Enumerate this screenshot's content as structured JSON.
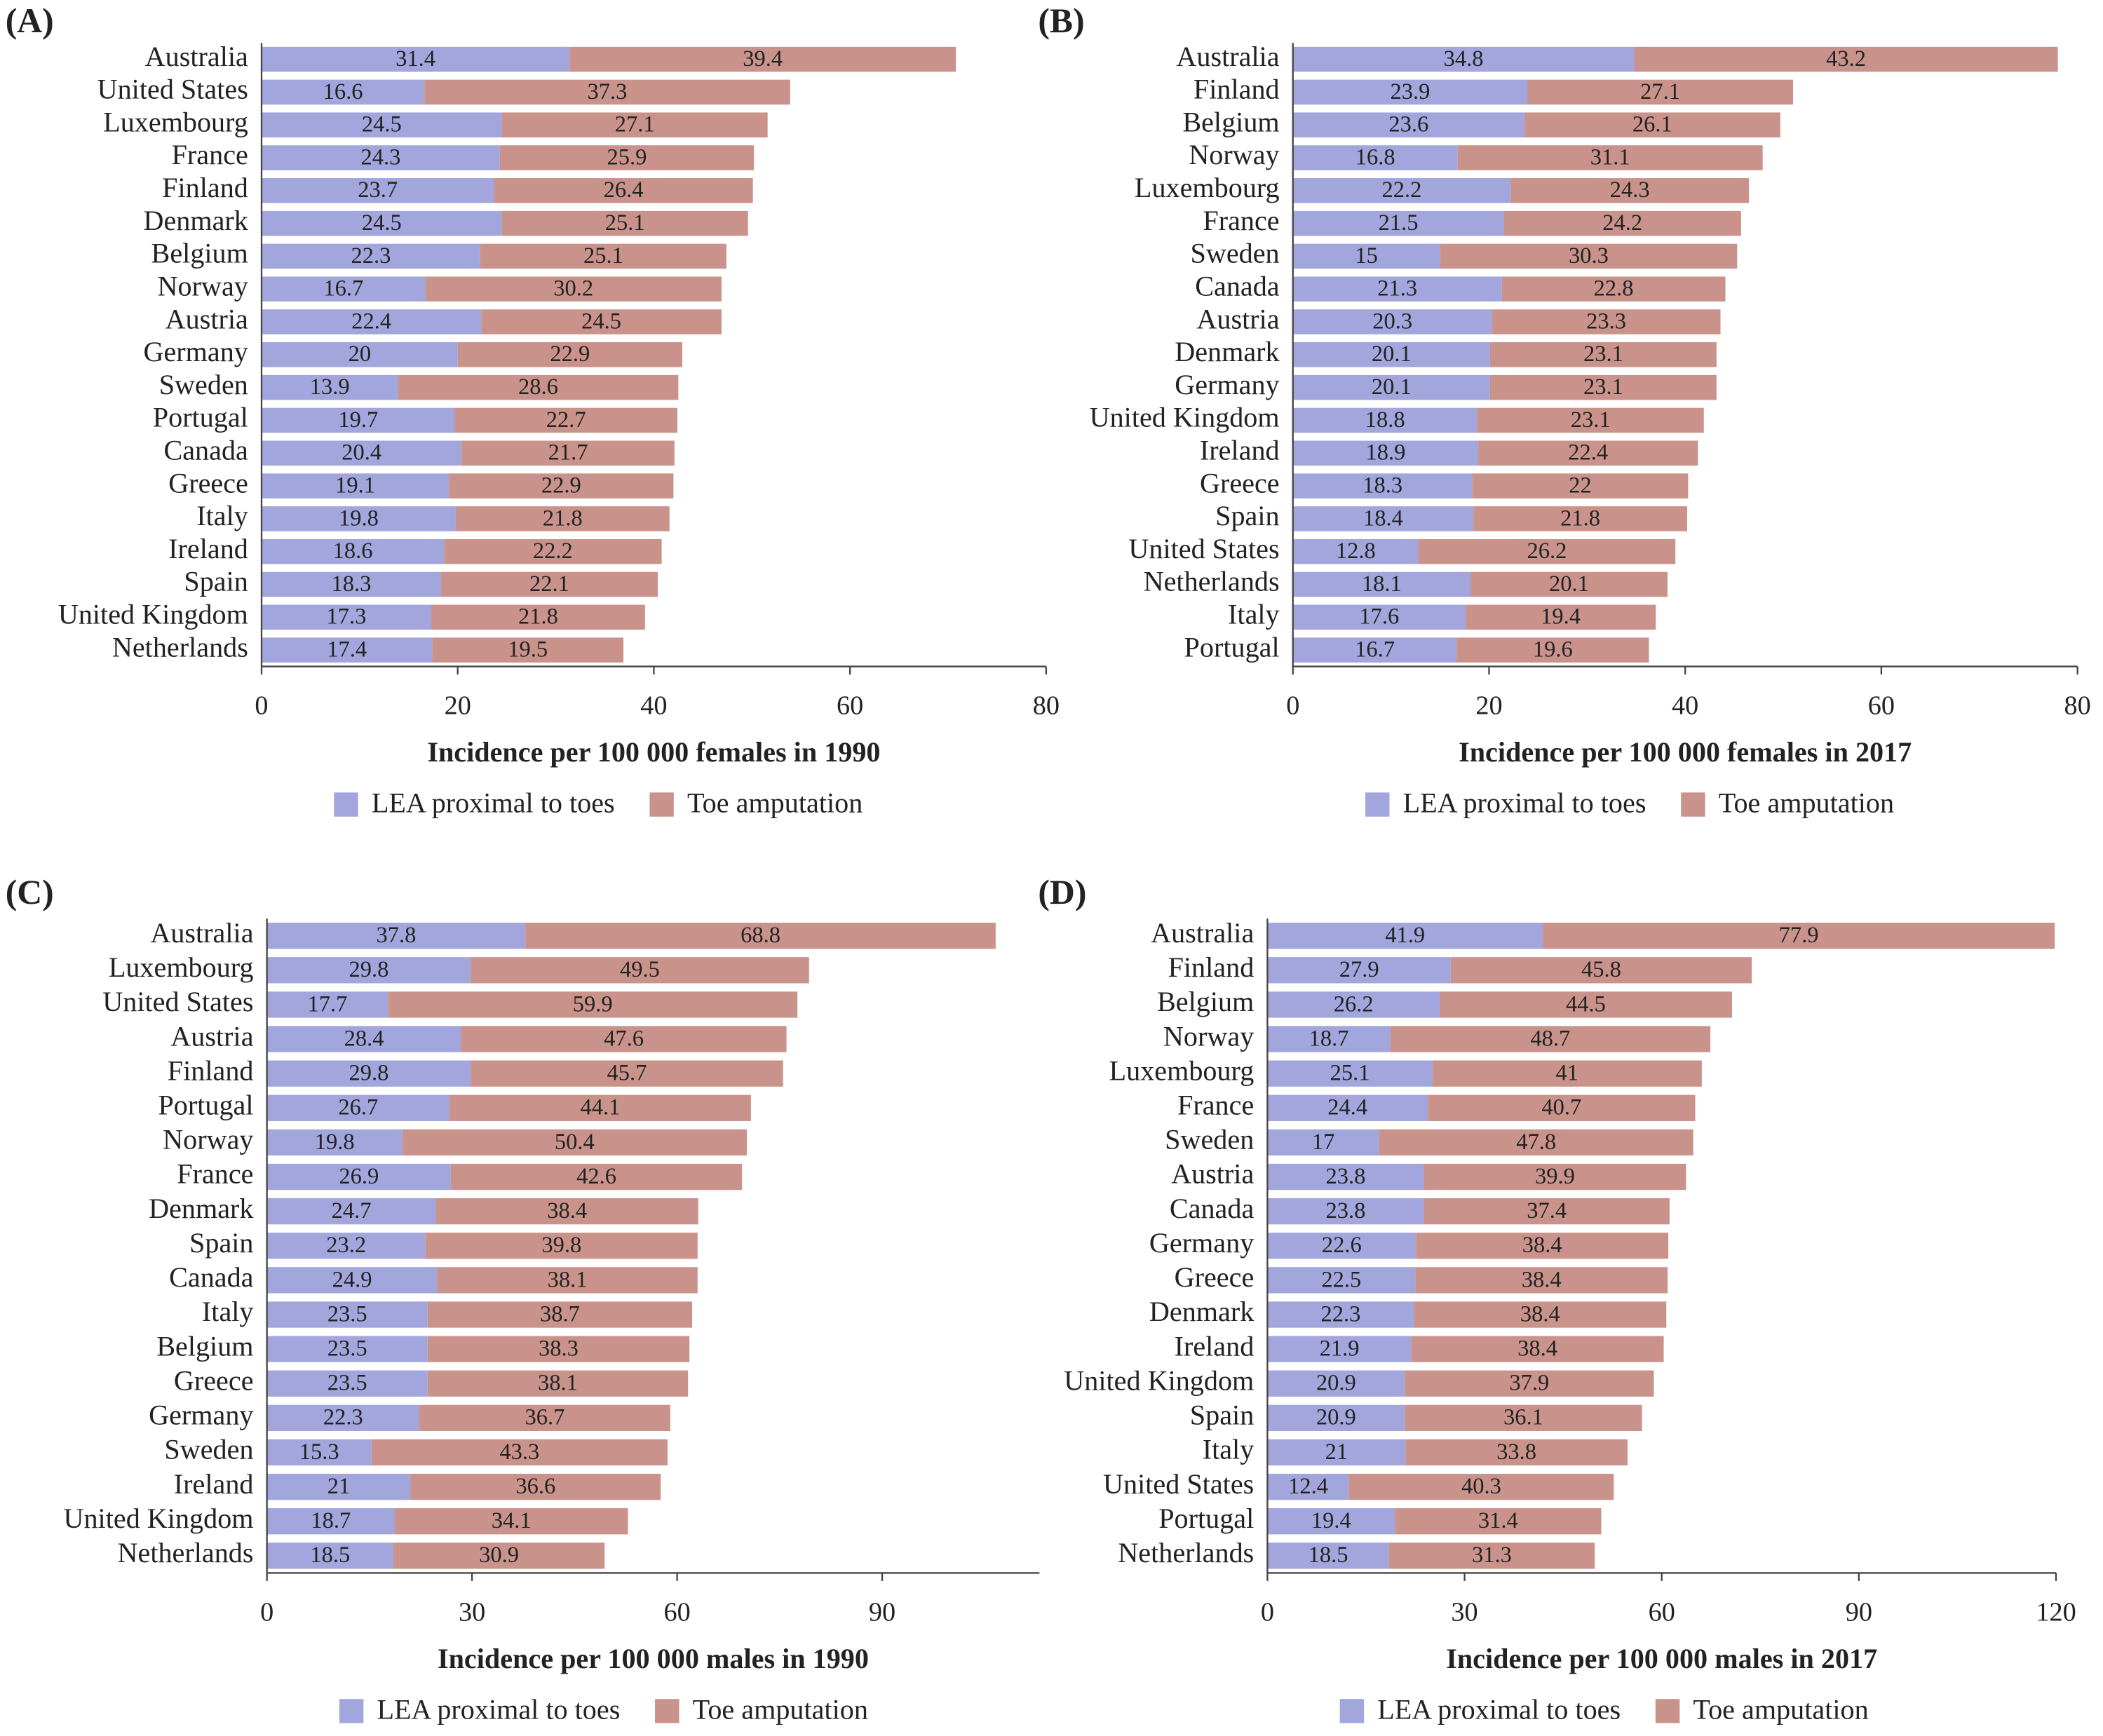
{
  "chart_data": [
    {
      "type": "stacked_bar",
      "label": "(A)",
      "x_label": "Incidence per 100 000 females in 1990",
      "categories": [
        "Australia",
        "United States",
        "Luxembourg",
        "France",
        "Finland",
        "Denmark",
        "Belgium",
        "Norway",
        "Austria",
        "Germany",
        "Sweden",
        "Portugal",
        "Canada",
        "Greece",
        "Italy",
        "Ireland",
        "Spain",
        "United Kingdom",
        "Netherlands"
      ],
      "series": [
        {
          "name": "LEA proximal to toes",
          "color": "#a2a6dc",
          "values": [
            31.4,
            16.6,
            24.5,
            24.3,
            23.7,
            24.5,
            22.3,
            16.7,
            22.4,
            20,
            13.9,
            19.7,
            20.4,
            19.1,
            19.8,
            18.6,
            18.3,
            17.3,
            17.4
          ]
        },
        {
          "name": "Toe amputation",
          "color": "#c9938b",
          "values": [
            39.4,
            37.3,
            27.1,
            25.9,
            26.4,
            25.1,
            25.1,
            30.2,
            24.5,
            22.9,
            28.6,
            22.7,
            21.7,
            22.9,
            21.8,
            22.2,
            22.1,
            21.8,
            19.5
          ]
        }
      ],
      "xlim": [
        0,
        80
      ],
      "xticks": [
        0,
        20,
        40,
        60,
        80
      ]
    },
    {
      "type": "stacked_bar",
      "label": "(B)",
      "x_label": "Incidence per 100 000 females in 2017",
      "categories": [
        "Australia",
        "Finland",
        "Belgium",
        "Norway",
        "Luxembourg",
        "France",
        "Sweden",
        "Canada",
        "Austria",
        "Denmark",
        "Germany",
        "United Kingdom",
        "Ireland",
        "Greece",
        "Spain",
        "United States",
        "Netherlands",
        "Italy",
        "Portugal"
      ],
      "series": [
        {
          "name": "LEA proximal to toes",
          "color": "#a2a6dc",
          "values": [
            34.8,
            23.9,
            23.6,
            16.8,
            22.2,
            21.5,
            15,
            21.3,
            20.3,
            20.1,
            20.1,
            18.8,
            18.9,
            18.3,
            18.4,
            12.8,
            18.1,
            17.6,
            16.7
          ]
        },
        {
          "name": "Toe amputation",
          "color": "#c9938b",
          "values": [
            43.2,
            27.1,
            26.1,
            31.1,
            24.3,
            24.2,
            30.3,
            22.8,
            23.3,
            23.1,
            23.1,
            23.1,
            22.4,
            22,
            21.8,
            26.2,
            20.1,
            19.4,
            19.6
          ]
        }
      ],
      "xlim": [
        0,
        80
      ],
      "xticks": [
        0,
        20,
        40,
        60,
        80
      ]
    },
    {
      "type": "stacked_bar",
      "label": "(C)",
      "x_label": "Incidence per 100 000 males in 1990",
      "categories": [
        "Australia",
        "Luxembourg",
        "United States",
        "Austria",
        "Finland",
        "Portugal",
        "Norway",
        "France",
        "Denmark",
        "Spain",
        "Canada",
        "Italy",
        "Belgium",
        "Greece",
        "Germany",
        "Sweden",
        "Ireland",
        "United Kingdom",
        "Netherlands"
      ],
      "series": [
        {
          "name": "LEA proximal to toes",
          "color": "#a2a6dc",
          "values": [
            37.8,
            29.8,
            17.7,
            28.4,
            29.8,
            26.7,
            19.8,
            26.9,
            24.7,
            23.2,
            24.9,
            23.5,
            23.5,
            23.5,
            22.3,
            15.3,
            21,
            18.7,
            18.5
          ]
        },
        {
          "name": "Toe amputation",
          "color": "#c9938b",
          "values": [
            68.8,
            49.5,
            59.9,
            47.6,
            45.7,
            44.1,
            50.4,
            42.6,
            38.4,
            39.8,
            38.1,
            38.7,
            38.3,
            38.1,
            36.7,
            43.3,
            36.6,
            34.1,
            30.9
          ]
        }
      ],
      "xlim": [
        0,
        113
      ],
      "xticks": [
        0,
        30,
        60,
        90
      ]
    },
    {
      "type": "stacked_bar",
      "label": "(D)",
      "x_label": "Incidence per 100 000 males in 2017",
      "categories": [
        "Australia",
        "Finland",
        "Belgium",
        "Norway",
        "Luxembourg",
        "France",
        "Sweden",
        "Austria",
        "Canada",
        "Germany",
        "Greece",
        "Denmark",
        "Ireland",
        "United Kingdom",
        "Spain",
        "Italy",
        "United States",
        "Portugal",
        "Netherlands"
      ],
      "series": [
        {
          "name": "LEA proximal to toes",
          "color": "#a2a6dc",
          "values": [
            41.9,
            27.9,
            26.2,
            18.7,
            25.1,
            24.4,
            17,
            23.8,
            23.8,
            22.6,
            22.5,
            22.3,
            21.9,
            20.9,
            20.9,
            21,
            12.4,
            19.4,
            18.5
          ]
        },
        {
          "name": "Toe amputation",
          "color": "#c9938b",
          "values": [
            77.9,
            45.8,
            44.5,
            48.7,
            41,
            40.7,
            47.8,
            39.9,
            37.4,
            38.4,
            38.4,
            38.4,
            38.4,
            37.9,
            36.1,
            33.8,
            40.3,
            31.4,
            31.3
          ]
        }
      ],
      "xlim": [
        0,
        120
      ],
      "xticks": [
        0,
        30,
        60,
        90,
        120
      ]
    }
  ]
}
